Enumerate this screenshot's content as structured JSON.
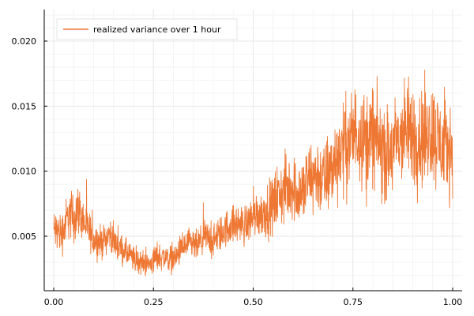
{
  "chart_data": {
    "type": "line",
    "title": "",
    "xlabel": "",
    "ylabel": "",
    "xlim": [
      0.0,
      1.0
    ],
    "ylim": [
      0.001,
      0.022
    ],
    "xticks": [
      {
        "value": 0.0,
        "label": "0.00"
      },
      {
        "value": 0.25,
        "label": "0.25"
      },
      {
        "value": 0.5,
        "label": "0.50"
      },
      {
        "value": 0.75,
        "label": "0.75"
      },
      {
        "value": 1.0,
        "label": "1.00"
      }
    ],
    "yticks": [
      {
        "value": 0.005,
        "label": "0.005"
      },
      {
        "value": 0.01,
        "label": "0.010"
      },
      {
        "value": 0.015,
        "label": "0.015"
      },
      {
        "value": 0.02,
        "label": "0.020"
      }
    ],
    "grid": true,
    "legend_position": "top-left",
    "series": [
      {
        "name": "realized variance over 1 hour",
        "color": "#ee7733",
        "x": [
          0.0,
          0.02,
          0.04,
          0.05,
          0.06,
          0.08,
          0.1,
          0.12,
          0.14,
          0.16,
          0.18,
          0.2,
          0.22,
          0.24,
          0.26,
          0.28,
          0.3,
          0.32,
          0.34,
          0.36,
          0.38,
          0.4,
          0.42,
          0.44,
          0.46,
          0.48,
          0.5,
          0.52,
          0.54,
          0.55,
          0.56,
          0.58,
          0.6,
          0.62,
          0.64,
          0.66,
          0.68,
          0.7,
          0.72,
          0.74,
          0.76,
          0.78,
          0.8,
          0.82,
          0.84,
          0.86,
          0.88,
          0.9,
          0.92,
          0.94,
          0.96,
          0.98,
          1.0
        ],
        "values": [
          0.0055,
          0.0052,
          0.0068,
          0.0062,
          0.0072,
          0.0058,
          0.0048,
          0.0045,
          0.0052,
          0.0042,
          0.0038,
          0.0032,
          0.003,
          0.0028,
          0.0035,
          0.0034,
          0.0032,
          0.004,
          0.0044,
          0.0042,
          0.005,
          0.0046,
          0.0052,
          0.0058,
          0.006,
          0.0058,
          0.0066,
          0.0068,
          0.007,
          0.0074,
          0.008,
          0.0086,
          0.0088,
          0.0082,
          0.0094,
          0.0098,
          0.0092,
          0.0104,
          0.0118,
          0.0122,
          0.0132,
          0.0124,
          0.0128,
          0.0118,
          0.011,
          0.0122,
          0.013,
          0.0128,
          0.0124,
          0.0132,
          0.0126,
          0.0116,
          0.012
        ],
        "amplitude": [
          0.0018,
          0.002,
          0.0022,
          0.0025,
          0.0022,
          0.0018,
          0.0016,
          0.0014,
          0.0014,
          0.0013,
          0.0012,
          0.0012,
          0.0011,
          0.0011,
          0.0013,
          0.0012,
          0.0012,
          0.0013,
          0.0014,
          0.0014,
          0.0015,
          0.0015,
          0.0016,
          0.0017,
          0.0017,
          0.0018,
          0.002,
          0.0021,
          0.0024,
          0.0026,
          0.0028,
          0.003,
          0.003,
          0.0031,
          0.0033,
          0.0034,
          0.0034,
          0.0036,
          0.004,
          0.0042,
          0.0044,
          0.0044,
          0.0044,
          0.0043,
          0.0042,
          0.0044,
          0.0046,
          0.0046,
          0.0046,
          0.0048,
          0.0046,
          0.0042,
          0.004
        ]
      }
    ]
  }
}
